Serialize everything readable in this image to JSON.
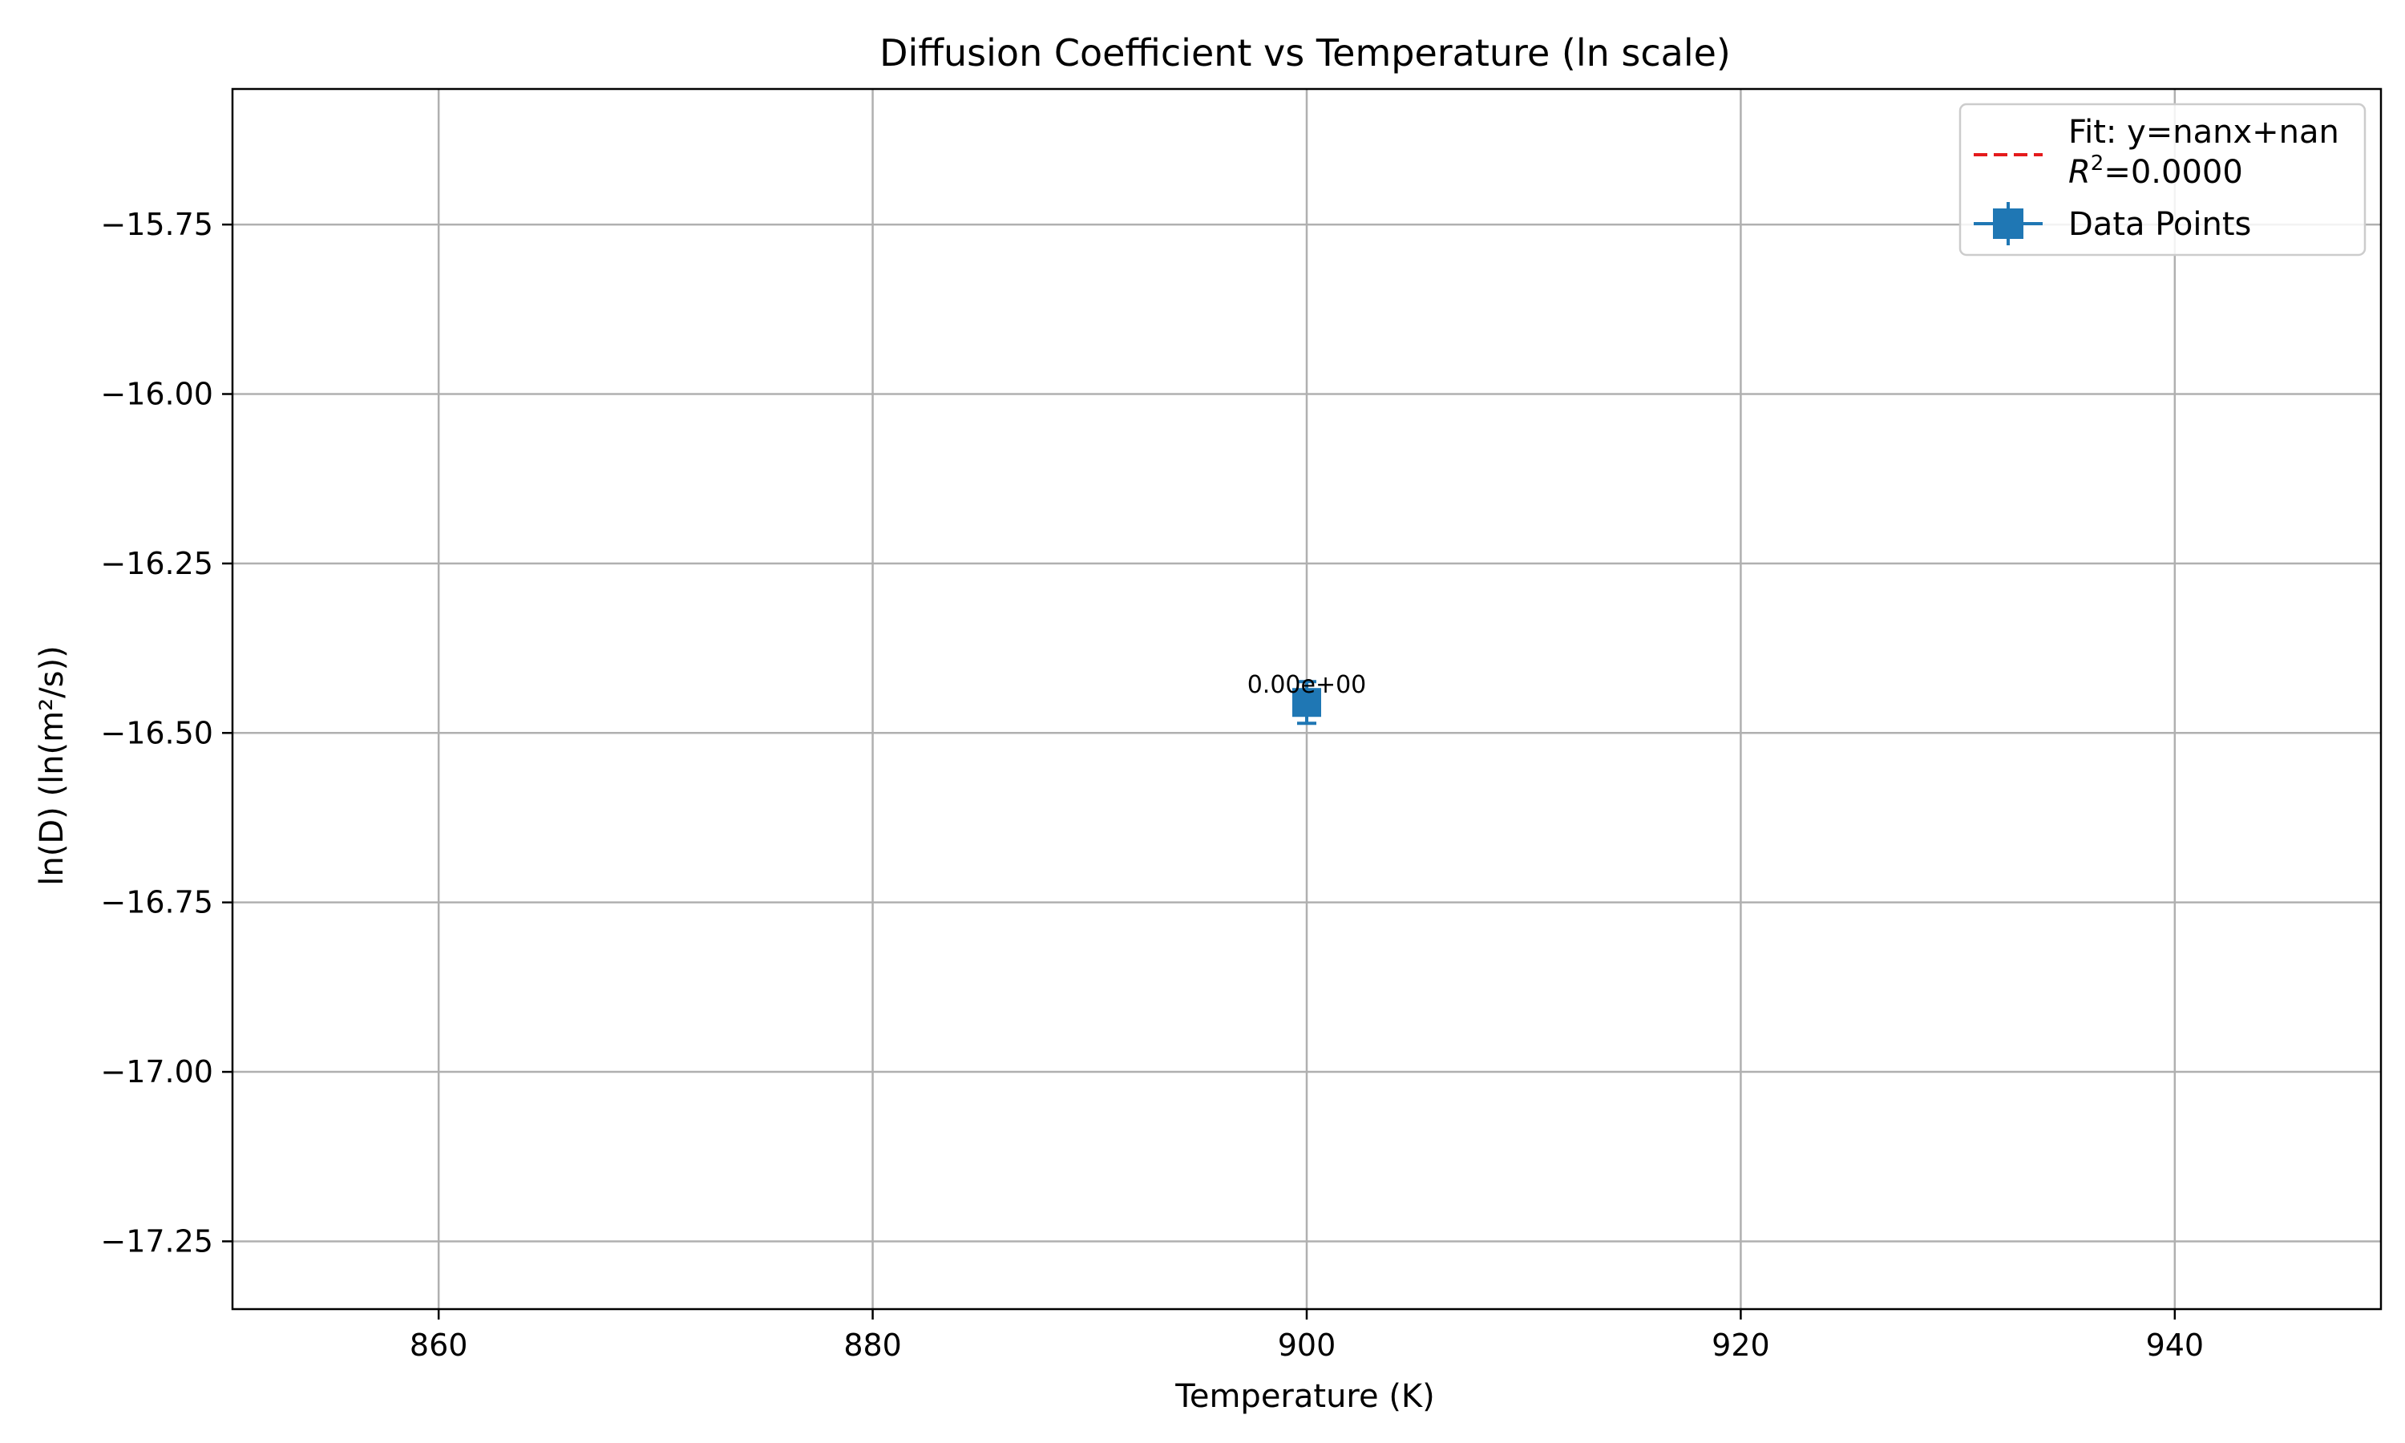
{
  "chart_data": {
    "type": "scatter",
    "title": "Diffusion Coefficient vs Temperature (ln scale)",
    "xlabel": "Temperature (K)",
    "ylabel": "ln(D) (ln(m²/s))",
    "xlim": [
      850.5,
      949.5
    ],
    "ylim": [
      -17.35,
      -15.55
    ],
    "x_ticks": [
      860,
      880,
      900,
      920,
      940
    ],
    "x_tick_labels": [
      "860",
      "880",
      "900",
      "920",
      "940"
    ],
    "y_ticks": [
      -15.75,
      -16.0,
      -16.25,
      -16.5,
      -16.75,
      -17.0,
      -17.25
    ],
    "y_tick_labels": [
      "−15.75",
      "−16.00",
      "−16.25",
      "−16.50",
      "−16.75",
      "−17.00",
      "−17.25"
    ],
    "grid": true,
    "legend_position": "top-right",
    "series": [
      {
        "name": "Fit: y=nanx+nan",
        "name_line2_r": "R",
        "name_line2_sup": "2",
        "name_line2_rest": "=0.0000",
        "style": "dashed-line",
        "color": "#e41a1c",
        "x": [],
        "y": []
      },
      {
        "name": "Data Points",
        "style": "marker-errorbar",
        "color": "#1f77b4",
        "x": [
          900
        ],
        "y": [
          -16.455
        ],
        "point_labels": [
          "0.00e+00"
        ]
      }
    ]
  }
}
